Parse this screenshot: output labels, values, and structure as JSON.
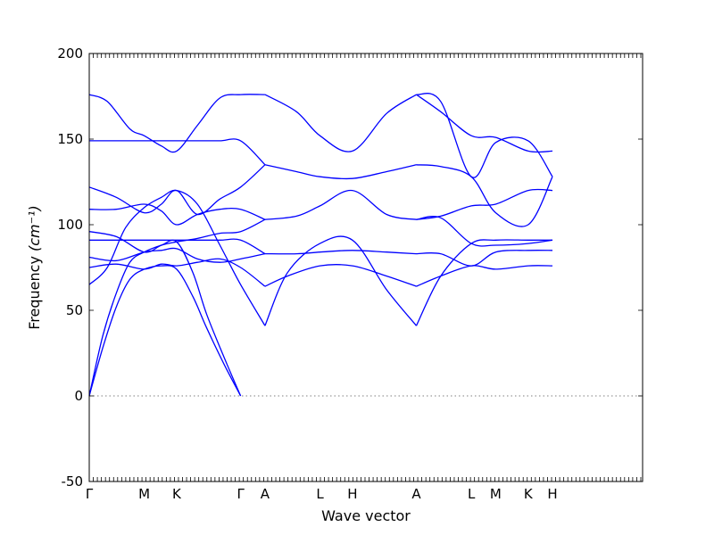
{
  "chart_data": {
    "type": "line",
    "title": "",
    "xlabel": "Wave vector",
    "ylabel": "Frequency",
    "ylabel_unit_html": "(cm⁻¹)",
    "ylim": [
      -50,
      200
    ],
    "yticks": [
      -50,
      0,
      50,
      100,
      150,
      200
    ],
    "xlim": [
      0,
      6.14
    ],
    "xticks": [
      {
        "label": "Γ",
        "x": 0
      },
      {
        "label": "M",
        "x": 0.61
      },
      {
        "label": "K",
        "x": 0.97
      },
      {
        "label": "Γ",
        "x": 1.68
      },
      {
        "label": "A",
        "x": 1.95
      },
      {
        "label": "L",
        "x": 2.56
      },
      {
        "label": "H",
        "x": 2.92
      },
      {
        "label": "A",
        "x": 3.63
      },
      {
        "label": "L",
        "x": 4.24
      },
      {
        "label": "M",
        "x": 4.51
      },
      {
        "label": "K",
        "x": 4.87
      },
      {
        "label": "H",
        "x": 5.14
      }
    ],
    "grid": false,
    "zero_line": true,
    "series_color": "#0000ff",
    "series": [
      {
        "x": [
          0,
          0.15,
          0.3,
          0.45,
          0.61,
          0.8,
          0.97,
          1.15,
          1.3,
          1.5,
          1.68
        ],
        "y": [
          0,
          28,
          52,
          68,
          74,
          76,
          74,
          58,
          40,
          18,
          0
        ]
      },
      {
        "x": [
          0,
          0.15,
          0.3,
          0.45,
          0.61,
          0.8,
          0.97,
          1.15,
          1.3,
          1.5,
          1.68
        ],
        "y": [
          0,
          35,
          60,
          78,
          84,
          88,
          90,
          72,
          48,
          22,
          0
        ]
      },
      {
        "x": [
          0,
          0.2,
          0.4,
          0.61,
          0.8,
          0.97,
          1.2,
          1.45,
          1.68,
          1.95
        ],
        "y": [
          65,
          75,
          98,
          110,
          116,
          120,
          112,
          88,
          65,
          41
        ]
      },
      {
        "x": [
          0,
          0.3,
          0.61,
          0.8,
          0.97,
          1.2,
          1.45,
          1.68,
          1.95
        ],
        "y": [
          75,
          77,
          74,
          77,
          76,
          78,
          80,
          75,
          64
        ]
      },
      {
        "x": [
          0,
          0.3,
          0.61,
          0.8,
          0.97,
          1.2,
          1.45,
          1.68,
          1.95
        ],
        "y": [
          81,
          79,
          84,
          85,
          86,
          80,
          78,
          80,
          83
        ]
      },
      {
        "x": [
          0,
          0.3,
          0.61,
          0.8,
          0.97,
          1.2,
          1.45,
          1.68,
          1.95
        ],
        "y": [
          91,
          91,
          91,
          91,
          91,
          91,
          91,
          91,
          83
        ]
      },
      {
        "x": [
          0,
          0.3,
          0.61,
          0.8,
          0.97,
          1.2,
          1.45,
          1.68,
          1.95
        ],
        "y": [
          96,
          93,
          84,
          88,
          90,
          92,
          95,
          96,
          103
        ]
      },
      {
        "x": [
          0,
          0.3,
          0.61,
          0.8,
          0.97,
          1.2,
          1.45,
          1.68,
          1.95
        ],
        "y": [
          109,
          109,
          112,
          108,
          100,
          106,
          109,
          109,
          103
        ]
      },
      {
        "x": [
          0,
          0.3,
          0.61,
          0.8,
          0.97,
          1.2,
          1.45,
          1.68,
          1.95
        ],
        "y": [
          122,
          116,
          107,
          112,
          120,
          106,
          115,
          122,
          135
        ]
      },
      {
        "x": [
          0,
          0.3,
          0.61,
          0.8,
          0.97,
          1.2,
          1.45,
          1.68,
          1.95
        ],
        "y": [
          149,
          149,
          149,
          149,
          149,
          149,
          149,
          149,
          135
        ]
      },
      {
        "x": [
          0,
          0.2,
          0.45,
          0.61,
          0.8,
          0.97,
          1.2,
          1.45,
          1.68,
          1.95
        ],
        "y": [
          176,
          172,
          156,
          152,
          146,
          143,
          158,
          174,
          176,
          176
        ]
      },
      {
        "x": [
          1.95,
          2.2,
          2.56,
          2.92,
          3.3,
          3.63
        ],
        "y": [
          41,
          72,
          89,
          91,
          62,
          41
        ]
      },
      {
        "x": [
          1.95,
          2.2,
          2.56,
          2.92,
          3.3,
          3.63
        ],
        "y": [
          64,
          70,
          76,
          76,
          70,
          64
        ]
      },
      {
        "x": [
          1.95,
          2.3,
          2.56,
          2.92,
          3.3,
          3.63
        ],
        "y": [
          83,
          83,
          84,
          85,
          84,
          83
        ]
      },
      {
        "x": [
          1.95,
          2.3,
          2.56,
          2.92,
          3.3,
          3.63
        ],
        "y": [
          103,
          105,
          111,
          120,
          106,
          103
        ]
      },
      {
        "x": [
          1.95,
          2.3,
          2.56,
          2.92,
          3.3,
          3.63
        ],
        "y": [
          135,
          131,
          128,
          127,
          131,
          135
        ]
      },
      {
        "x": [
          1.95,
          2.3,
          2.56,
          2.92,
          3.3,
          3.63
        ],
        "y": [
          176,
          166,
          152,
          143,
          165,
          176
        ]
      },
      {
        "x": [
          3.63,
          3.9,
          4.24,
          4.51,
          4.87,
          5.14
        ],
        "y": [
          41,
          70,
          89,
          91,
          91,
          91
        ]
      },
      {
        "x": [
          3.63,
          3.9,
          4.24,
          4.51,
          4.87,
          5.14
        ],
        "y": [
          64,
          70,
          76,
          74,
          76,
          76
        ]
      },
      {
        "x": [
          3.63,
          3.9,
          4.24,
          4.51,
          4.87,
          5.14
        ],
        "y": [
          83,
          83,
          76,
          84,
          85,
          85
        ]
      },
      {
        "x": [
          3.63,
          3.9,
          4.24,
          4.51,
          4.87,
          5.14
        ],
        "y": [
          103,
          104,
          89,
          88,
          89,
          91
        ]
      },
      {
        "x": [
          3.63,
          3.9,
          4.24,
          4.51,
          4.87,
          5.14
        ],
        "y": [
          103,
          105,
          111,
          112,
          120,
          120
        ]
      },
      {
        "x": [
          3.63,
          3.9,
          4.24,
          4.51,
          4.87,
          5.14
        ],
        "y": [
          135,
          134,
          128,
          107,
          100,
          128
        ]
      },
      {
        "x": [
          3.63,
          3.9,
          4.24,
          4.51,
          4.87,
          5.14
        ],
        "y": [
          176,
          172,
          128,
          148,
          149,
          128
        ]
      },
      {
        "x": [
          3.63,
          3.9,
          4.24,
          4.51,
          4.87,
          5.14
        ],
        "y": [
          176,
          166,
          152,
          151,
          143,
          143
        ]
      }
    ]
  }
}
